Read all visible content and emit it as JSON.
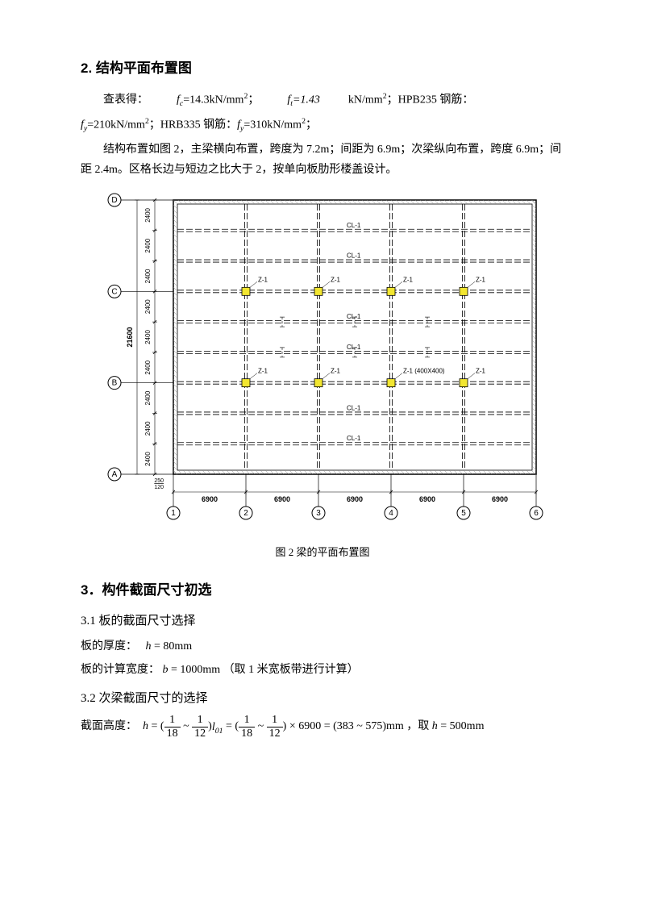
{
  "section2": {
    "title": "2. 结构平面布置图",
    "line1a": "查表得：",
    "line1b": "=14.3kN/mm",
    "line1c": "；",
    "line1d": "=1.43",
    "line1e": "kN/mm",
    "line1f": "；HPB235 钢筋：",
    "line2a": "=210kN/mm",
    "line2b": "；HRB335 钢筋：",
    "line2c": "=310kN/mm",
    "line2d": "；",
    "para2": "结构布置如图 2，主梁横向布置，跨度为 7.2m；间距为 6.9m；次梁纵向布置，跨度 6.9m；间距 2.4m。区格长边与短边之比大于 2，按单向板肋形楼盖设计。"
  },
  "diagram": {
    "caption": "图 2   梁的平面布置图",
    "rowLabels": [
      "D",
      "C",
      "B",
      "A"
    ],
    "colLabels": [
      "1",
      "2",
      "3",
      "4",
      "5",
      "6"
    ],
    "vDims": [
      "2400",
      "2400",
      "2400",
      "2400",
      "2400",
      "2400",
      "2400",
      "2400",
      "2400"
    ],
    "vTotal": "21600",
    "hDims": [
      "6900",
      "6900",
      "6900",
      "6900",
      "6900"
    ],
    "dim250": "250",
    "dim120": "120",
    "beamLabel": "CL-1",
    "colMark": "Z-1",
    "colMarkLong": "Z-1 (400X400)",
    "colors": {
      "outline": "#000000",
      "wall": "#888888",
      "column": "#f2e631",
      "text": "#000000"
    }
  },
  "section3": {
    "title": "3．构件截面尺寸初选",
    "h31": "3.1  板的截面尺寸选择",
    "slabThickLabel": "板的厚度：",
    "slabThickVal": " = 80mm",
    "slabWidthLabel": "板的计算宽度：",
    "slabWidthVal": " = 1000mm  （取 1 米宽板带进行计算）",
    "h32": "3.2  次梁截面尺寸的选择",
    "beamHLabel": "截面高度：",
    "beamHMid": " × 6900 = (383 ~ 575)mm ，取",
    "beamHEnd": " = 500mm"
  }
}
